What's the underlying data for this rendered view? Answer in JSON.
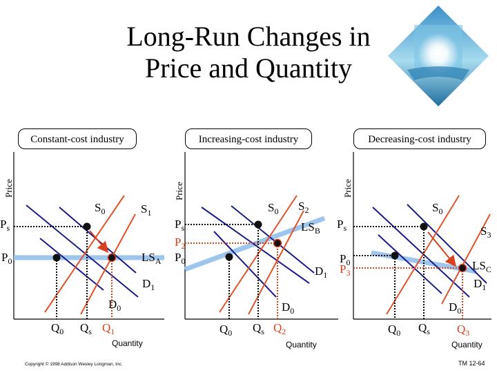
{
  "title_line1": "Long-Run Changes in",
  "title_line2": "Price and Quantity",
  "panels": [
    {
      "label": "Constant-cost industry",
      "ylabel": "Price",
      "xlabel": "Quantity",
      "tags": {
        "S0": "S",
        "S0sub": "0",
        "S1": "S",
        "S1sub": "1",
        "Ps": "P",
        "Pssub": "s",
        "P0": "P",
        "P0sub": "0",
        "LSA": "LS",
        "LSAsub": "A",
        "D1": "D",
        "D1sub": "1",
        "D0": "D",
        "D0sub": "0",
        "Q0": "Q",
        "Q0sub": "0",
        "Qs": "Q",
        "Qssub": "s",
        "Q1": "Q",
        "Q1sub": "1"
      }
    },
    {
      "label": "Increasing-cost industry",
      "ylabel": "Price",
      "xlabel": "Quantity",
      "tags": {
        "S0": "S",
        "S0sub": "0",
        "S2": "S",
        "S2sub": "2",
        "Ps": "P",
        "Pssub": "s",
        "P2": "P",
        "P2sub": "2",
        "P0": "P",
        "P0sub": "0",
        "LSB": "LS",
        "LSBsub": "B",
        "D1": "D",
        "D1sub": "1",
        "D0": "D",
        "D0sub": "0",
        "Q0": "Q",
        "Q0sub": "0",
        "Qs": "Q",
        "Qssub": "s",
        "Q2": "Q",
        "Q2sub": "2"
      }
    },
    {
      "label": "Decreasing-cost industry",
      "ylabel": "Price",
      "xlabel": "Quantity",
      "tags": {
        "S0": "S",
        "S0sub": "0",
        "S3": "S",
        "S3sub": "3",
        "Ps": "P",
        "Pssub": "s",
        "P0": "P",
        "P0sub": "0",
        "P3": "P",
        "P3sub": "3",
        "LSC": "LS",
        "LSCsub": "C",
        "D1": "D",
        "D1sub": "1",
        "D0": "D",
        "D0sub": "0",
        "Q0": "Q",
        "Q0sub": "0",
        "Qs": "Q",
        "Qssub": "s",
        "Q3": "Q",
        "Q3sub": "3"
      }
    }
  ],
  "copyright": "Copyright © 1998 Addison Wesley Longman, Inc.",
  "slide_number": "TM 12-64",
  "colors": {
    "supply": "#e0522a",
    "demand": "#1a1a8c",
    "long_run": "#9ec6ec",
    "highlight": "#d9401c"
  }
}
